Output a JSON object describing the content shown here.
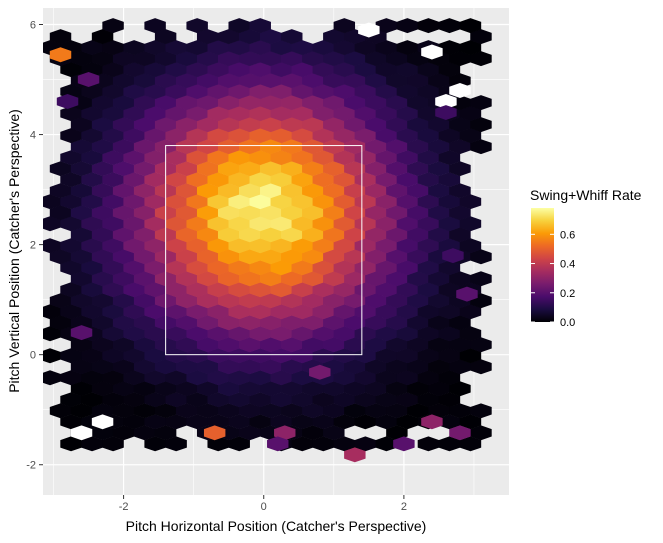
{
  "chart_data": {
    "type": "heatmap",
    "geom": "hexbin",
    "title": "",
    "xlabel": "Pitch Horizontal Position (Catcher's Perspective)",
    "ylabel": "Pitch Vertical Position (Catcher's Perspective)",
    "xlim": [
      -3.15,
      3.5
    ],
    "ylim": [
      -2.55,
      6.3
    ],
    "xticks": [
      -2,
      0,
      2
    ],
    "xtick_labels": [
      "-2",
      "0",
      "2"
    ],
    "yticks": [
      -2,
      0,
      2,
      4,
      6
    ],
    "ytick_labels": [
      "-2",
      "0",
      "2",
      "4",
      "6"
    ],
    "grid": true,
    "panel_background": "#ebebeb",
    "gridline_color": "#ffffff",
    "strike_zone": {
      "x": [
        -1.4,
        1.4
      ],
      "y": [
        0.0,
        3.8
      ],
      "color": "#ffffff"
    },
    "hex_grid": {
      "x_start": -3.05,
      "x_step": 0.3,
      "y_start": -1.62,
      "y_step": 0.2,
      "rows": 40,
      "cols": 21
    },
    "density_model": {
      "peak_value": 0.75,
      "center": [
        0.0,
        2.6
      ],
      "sigma_x": 1.25,
      "sigma_y": 1.5
    },
    "empty_regions": {
      "x_radius": 3.2,
      "y_range": [
        -1.9,
        6.1
      ]
    },
    "outliers": [
      {
        "x": -2.9,
        "y": 5.45,
        "value": 0.55
      },
      {
        "x": -2.5,
        "y": 5.0,
        "value": 0.2
      },
      {
        "x": -2.8,
        "y": 4.6,
        "value": 0.15
      },
      {
        "x": 2.6,
        "y": 4.4,
        "value": 0.15
      },
      {
        "x": -0.7,
        "y": -1.42,
        "value": 0.5
      },
      {
        "x": 0.3,
        "y": -1.42,
        "value": 0.3
      },
      {
        "x": 1.3,
        "y": -1.82,
        "value": 0.35
      },
      {
        "x": 2.4,
        "y": -1.22,
        "value": 0.3
      },
      {
        "x": 2.8,
        "y": -1.42,
        "value": 0.25
      },
      {
        "x": 2.0,
        "y": -1.62,
        "value": 0.2
      },
      {
        "x": 0.2,
        "y": -1.62,
        "value": 0.2
      },
      {
        "x": 2.9,
        "y": 1.1,
        "value": 0.2
      },
      {
        "x": 0.8,
        "y": -0.32,
        "value": 0.25
      },
      {
        "x": -2.6,
        "y": 0.4,
        "value": 0.2
      },
      {
        "x": 2.7,
        "y": 1.8,
        "value": 0.15
      }
    ],
    "white_hexes": [
      {
        "x": -2.6,
        "y": -1.42
      },
      {
        "x": -2.3,
        "y": -1.22
      },
      {
        "x": 2.6,
        "y": 4.6
      },
      {
        "x": 2.4,
        "y": 5.5
      },
      {
        "x": 2.8,
        "y": 4.8
      },
      {
        "x": 1.5,
        "y": 5.9
      }
    ],
    "legend": {
      "title": "Swing+Whiff Rate",
      "position": "right",
      "range": [
        0.0,
        0.78
      ],
      "ticks": [
        0.0,
        0.2,
        0.4,
        0.6
      ],
      "tick_labels": [
        "0.0",
        "0.2",
        "0.4",
        "0.6"
      ],
      "colormap": "inferno",
      "colors": [
        "#000004",
        "#1b0c41",
        "#4a0c6b",
        "#781c6d",
        "#a52c60",
        "#cf4446",
        "#ed6925",
        "#fb9b06",
        "#f7d13d",
        "#fcffa4"
      ]
    }
  }
}
